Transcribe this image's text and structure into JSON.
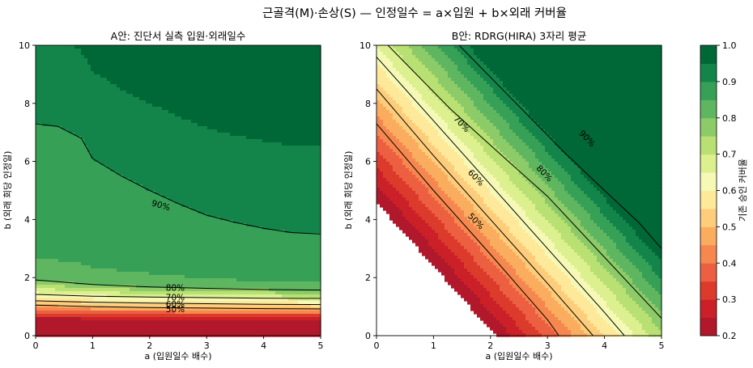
{
  "suptitle": "근골격(M)·손상(S) — 인정일수 = a×입원 + b×외래 커버율",
  "chart_data": [
    {
      "type": "contourf",
      "title": "A안: 진단서 실측 입원·외래일수",
      "xlabel": "a (입원일수 배수)",
      "ylabel": "b (외래 회당 인정일)",
      "xlim": [
        0,
        5
      ],
      "ylim": [
        0,
        10
      ],
      "xticks": [
        "0",
        "1",
        "2",
        "3",
        "4",
        "5"
      ],
      "yticks": [
        "0",
        "2",
        "4",
        "6",
        "8",
        "10"
      ],
      "contour_lines": [
        {
          "level": 0.5,
          "label": "50%",
          "points": [
            [
              0,
              1.05
            ],
            [
              1,
              1.0
            ],
            [
              2,
              0.97
            ],
            [
              3,
              0.95
            ],
            [
              4,
              0.93
            ],
            [
              5,
              0.92
            ]
          ]
        },
        {
          "level": 0.6,
          "label": "60%",
          "points": [
            [
              0,
              1.2
            ],
            [
              1,
              1.15
            ],
            [
              2,
              1.12
            ],
            [
              3,
              1.1
            ],
            [
              4,
              1.08
            ],
            [
              5,
              1.07
            ]
          ]
        },
        {
          "level": 0.7,
          "label": "70%",
          "points": [
            [
              0,
              1.42
            ],
            [
              1,
              1.36
            ],
            [
              2,
              1.33
            ],
            [
              3,
              1.31
            ],
            [
              4,
              1.29
            ],
            [
              5,
              1.28
            ]
          ]
        },
        {
          "level": 0.8,
          "label": "80%",
          "points": [
            [
              0,
              1.92
            ],
            [
              1,
              1.76
            ],
            [
              2,
              1.68
            ],
            [
              3,
              1.63
            ],
            [
              4,
              1.59
            ],
            [
              5,
              1.57
            ]
          ]
        },
        {
          "level": 0.9,
          "label": "90%",
          "points": [
            [
              0,
              7.3
            ],
            [
              0.4,
              7.2
            ],
            [
              0.8,
              6.8
            ],
            [
              1,
              6.1
            ],
            [
              1.5,
              5.5
            ],
            [
              2,
              5.0
            ],
            [
              2.5,
              4.55
            ],
            [
              3,
              4.15
            ],
            [
              3.5,
              3.9
            ],
            [
              4,
              3.7
            ],
            [
              4.5,
              3.55
            ],
            [
              5,
              3.5
            ]
          ]
        }
      ]
    },
    {
      "type": "contourf",
      "title": "B안: RDRG(HIRA) 3자리 평균",
      "xlabel": "a (입원일수 배수)",
      "ylabel": "b (외래 회당 인정일)",
      "xlim": [
        0,
        5
      ],
      "ylim": [
        0,
        10
      ],
      "xticks": [
        "0",
        "1",
        "2",
        "3",
        "4",
        "5"
      ],
      "yticks": [
        "0",
        "2",
        "4",
        "6",
        "8",
        "10"
      ],
      "contour_lines": [
        {
          "level": 0.5,
          "label": "50%",
          "points": [
            [
              0,
              7.3
            ],
            [
              1,
              5.0
            ],
            [
              2,
              2.8
            ],
            [
              3,
              0.55
            ],
            [
              3.2,
              0
            ]
          ]
        },
        {
          "level": 0.6,
          "label": "60%",
          "points": [
            [
              0,
              8.5
            ],
            [
              1,
              6.2
            ],
            [
              2,
              4.0
            ],
            [
              3,
              1.8
            ],
            [
              3.8,
              0
            ]
          ]
        },
        {
          "level": 0.7,
          "label": "70%",
          "points": [
            [
              0,
              9.6
            ],
            [
              1,
              7.4
            ],
            [
              2,
              5.2
            ],
            [
              3,
              3.0
            ],
            [
              4,
              0.8
            ],
            [
              4.35,
              0
            ]
          ]
        },
        {
          "level": 0.8,
          "label": "80%",
          "points": [
            [
              0.2,
              10
            ],
            [
              1.3,
              7.8
            ],
            [
              2.2,
              6.2
            ],
            [
              3,
              4.8
            ],
            [
              4,
              2.7
            ],
            [
              5,
              0.6
            ]
          ]
        },
        {
          "level": 0.9,
          "label": "90%",
          "points": [
            [
              1.45,
              10
            ],
            [
              2.5,
              7.9
            ],
            [
              3.3,
              6.3
            ],
            [
              4,
              5.0
            ],
            [
              4.6,
              3.9
            ],
            [
              5,
              3.0
            ]
          ]
        }
      ]
    }
  ],
  "colorbar": {
    "label": "기존 승인 커버율",
    "ticks": [
      "0.2",
      "0.3",
      "0.4",
      "0.5",
      "0.6",
      "0.7",
      "0.8",
      "0.9",
      "1.0"
    ],
    "min": 0.2,
    "max": 1.0,
    "colors": [
      "#b2182b",
      "#cb2027",
      "#dc3b2c",
      "#ec6041",
      "#f5874f",
      "#fbad5f",
      "#fdcd7c",
      "#fee99b",
      "#f6f9b6",
      "#dcf08f",
      "#b8e072",
      "#8ccb67",
      "#5fb660",
      "#36a056",
      "#13854a",
      "#006837"
    ]
  }
}
